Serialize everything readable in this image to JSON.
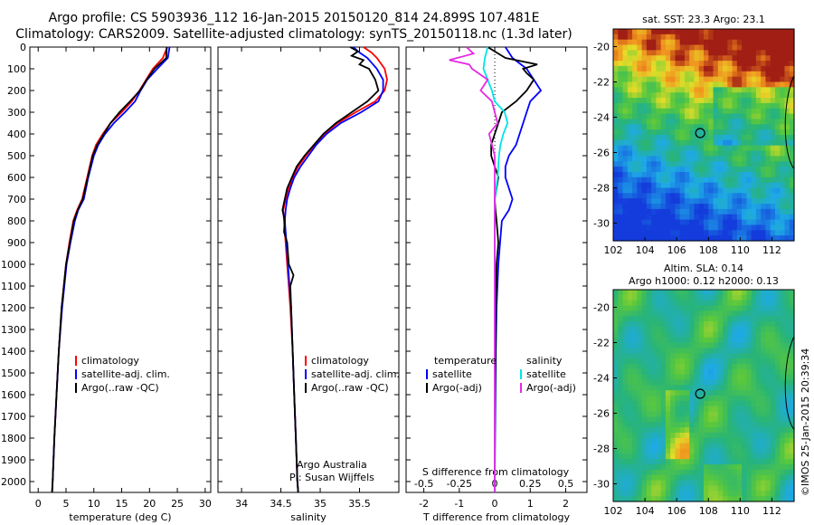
{
  "title": {
    "line1": "Argo profile: CS 5903936_112 16-Jan-2015 20150120_814 24.899S 107.481E",
    "line2": "Climatology: CARS2009. Satellite-adjusted climatology: synTS_20150118.nc (1.3d later)"
  },
  "stamp": "©IMOS 25-Jan-2015 20:39:34",
  "colors": {
    "climatology": "#ff0000",
    "satellite": "#0000ff",
    "argo": "#000000",
    "sal_satellite": "#00e5e5",
    "sal_argo": "#e528e5"
  },
  "depth_axis": {
    "range": [
      0,
      2050
    ],
    "ticks": [
      0,
      100,
      200,
      300,
      400,
      500,
      600,
      700,
      800,
      900,
      1000,
      1100,
      1200,
      1300,
      1400,
      1500,
      1600,
      1700,
      1800,
      1900,
      2000
    ]
  },
  "legends": {
    "temp": [
      "climatology",
      "satellite-adj. clim.",
      "Argo(..raw -QC)"
    ],
    "sal": [
      "climatology",
      "satellite-adj. clim.",
      "Argo(..raw -QC)"
    ],
    "diff_temp_header": "temperature",
    "diff_sal_header": "salinity",
    "diff_temp": [
      "satellite",
      "Argo(-adj)"
    ],
    "diff_sal": [
      "satellite",
      "Argo(-adj)"
    ]
  },
  "annotations": {
    "argo_line1": "Argo Australia",
    "argo_line2": "PI: Susan Wijffels",
    "s_diff_label": "S difference from climatology"
  },
  "maps": {
    "sst_title": "sat. SST: 23.3 Argo: 23.1",
    "sla_title_line1": "Altim. SLA: 0.14",
    "sla_title_line2": "Argo h1000: 0.12 h2000: 0.13",
    "lon_ticks": [
      102,
      104,
      106,
      108,
      110,
      112
    ],
    "lat_ticks": [
      -20,
      -22,
      -24,
      -26,
      -28,
      -30
    ],
    "argo_lon": 107.481,
    "argo_lat": -24.899,
    "lon_range": [
      102,
      113.4
    ],
    "lat_range": [
      -31,
      -19
    ]
  },
  "chart_data": [
    {
      "type": "line",
      "panel": "temperature",
      "xlabel": "temperature (deg C)",
      "ylabel": "",
      "xlim": [
        -1.5,
        31
      ],
      "ylim": [
        2050,
        0
      ],
      "x_ticks": [
        0,
        5,
        10,
        15,
        20,
        25,
        30
      ],
      "series": [
        {
          "name": "climatology",
          "depth": [
            0,
            50,
            100,
            150,
            200,
            250,
            300,
            350,
            400,
            450,
            500,
            600,
            700,
            750,
            800,
            900,
            1000,
            1200,
            1400,
            1600,
            1800,
            2000,
            2050
          ],
          "values": [
            23.2,
            22.4,
            20.6,
            19.4,
            18.2,
            16.8,
            15.0,
            13.0,
            11.6,
            10.4,
            9.7,
            8.8,
            7.9,
            7.0,
            6.3,
            5.6,
            5.0,
            4.2,
            3.7,
            3.3,
            2.9,
            2.6,
            2.5
          ]
        },
        {
          "name": "satellite-adj. clim.",
          "depth": [
            0,
            50,
            100,
            150,
            200,
            250,
            300,
            350,
            400,
            450,
            500,
            600,
            700,
            750,
            800,
            900,
            1000,
            1200,
            1400,
            1600,
            1800,
            2000,
            2050
          ],
          "values": [
            23.6,
            23.3,
            21.4,
            19.6,
            18.4,
            17.4,
            15.6,
            13.6,
            12.0,
            10.8,
            10.0,
            9.0,
            8.2,
            7.2,
            6.6,
            5.8,
            5.1,
            4.3,
            3.7,
            3.3,
            2.9,
            2.6,
            2.5
          ]
        },
        {
          "name": "Argo(..raw -QC)",
          "depth": [
            0,
            50,
            100,
            150,
            200,
            250,
            300,
            350,
            400,
            450,
            500,
            600,
            700,
            750,
            800,
            900,
            1000,
            1200,
            1400,
            1600,
            1800,
            2000,
            2050
          ],
          "values": [
            23.1,
            23.0,
            20.9,
            19.5,
            18.3,
            16.5,
            14.6,
            13.0,
            11.8,
            10.6,
            9.8,
            8.9,
            8.0,
            7.1,
            6.4,
            5.7,
            5.0,
            4.2,
            3.7,
            3.3,
            2.9,
            2.6,
            2.5
          ]
        }
      ]
    },
    {
      "type": "line",
      "panel": "salinity",
      "xlabel": "salinity",
      "ylabel": "",
      "xlim": [
        33.7,
        36.0
      ],
      "ylim": [
        2050,
        0
      ],
      "x_ticks": [
        34,
        34.5,
        35,
        35.5
      ],
      "series": [
        {
          "name": "climatology",
          "depth": [
            0,
            25,
            50,
            100,
            150,
            200,
            250,
            300,
            350,
            400,
            450,
            500,
            550,
            600,
            650,
            700,
            750,
            800,
            850,
            900,
            1000,
            1100,
            1200,
            1400,
            1600,
            1800,
            2000,
            2050
          ],
          "values": [
            35.55,
            35.65,
            35.72,
            35.82,
            35.85,
            35.82,
            35.7,
            35.45,
            35.22,
            35.05,
            34.93,
            34.82,
            34.72,
            34.65,
            34.6,
            34.56,
            34.53,
            34.54,
            34.55,
            34.56,
            34.58,
            34.6,
            34.62,
            34.65,
            34.67,
            34.69,
            34.71,
            34.72
          ]
        },
        {
          "name": "satellite-adj. clim.",
          "depth": [
            0,
            25,
            50,
            100,
            150,
            200,
            250,
            300,
            350,
            400,
            450,
            500,
            550,
            600,
            650,
            700,
            750,
            800,
            850,
            900,
            1000,
            1100,
            1200,
            1400,
            1600,
            1800,
            2000,
            2050
          ],
          "values": [
            35.42,
            35.5,
            35.6,
            35.72,
            35.8,
            35.8,
            35.74,
            35.52,
            35.26,
            35.08,
            34.95,
            34.85,
            34.75,
            34.67,
            34.62,
            34.58,
            34.56,
            34.55,
            34.56,
            34.57,
            34.59,
            34.61,
            34.63,
            34.65,
            34.67,
            34.69,
            34.71,
            34.72
          ]
        },
        {
          "name": "Argo(..raw -QC)",
          "depth": [
            0,
            20,
            40,
            60,
            80,
            100,
            150,
            200,
            250,
            300,
            350,
            400,
            450,
            500,
            550,
            600,
            650,
            700,
            750,
            800,
            850,
            900,
            1000,
            1050,
            1100,
            1200,
            1400,
            1600,
            1800,
            2000,
            2050
          ],
          "values": [
            35.38,
            35.48,
            35.4,
            35.55,
            35.5,
            35.62,
            35.7,
            35.74,
            35.6,
            35.4,
            35.2,
            35.04,
            34.92,
            34.8,
            34.7,
            34.64,
            34.58,
            34.55,
            34.52,
            34.55,
            34.54,
            34.58,
            34.6,
            34.66,
            34.62,
            34.63,
            34.65,
            34.67,
            34.69,
            34.71,
            34.72
          ]
        }
      ]
    },
    {
      "type": "line",
      "panel": "difference",
      "xlabel": "T difference from climatology",
      "x2label": "S difference from climatology",
      "ylabel": "",
      "xlim": [
        -2.5,
        2.6
      ],
      "ylim": [
        2050,
        0
      ],
      "x_ticks": [
        -2,
        -1,
        0,
        1,
        2
      ],
      "x2_ticks": [
        -0.5,
        -0.25,
        0,
        0.25,
        0.5
      ],
      "series": [
        {
          "name": "temperature satellite",
          "depth": [
            0,
            50,
            100,
            150,
            200,
            250,
            300,
            350,
            400,
            450,
            500,
            550,
            600,
            650,
            700,
            750,
            800,
            900,
            1000,
            1200,
            1400,
            1600,
            1800,
            2000,
            2050
          ],
          "values": [
            0.3,
            0.5,
            0.9,
            1.1,
            1.3,
            1.0,
            0.9,
            0.8,
            0.7,
            0.6,
            0.4,
            0.3,
            0.3,
            0.4,
            0.5,
            0.4,
            0.2,
            0.15,
            0.1,
            0.05,
            0.03,
            0.02,
            0.01,
            0.0,
            0.0
          ]
        },
        {
          "name": "temperature Argo(-adj)",
          "depth": [
            0,
            50,
            80,
            100,
            120,
            150,
            200,
            250,
            300,
            350,
            400,
            450,
            500,
            550,
            600,
            650,
            700,
            750,
            800,
            900,
            1000,
            1200,
            1400,
            1600,
            1800,
            2000,
            2050
          ],
          "values": [
            -0.2,
            0.3,
            1.2,
            0.8,
            0.9,
            1.1,
            0.9,
            0.6,
            0.2,
            0.1,
            0.0,
            -0.1,
            -0.1,
            0.0,
            0.1,
            0.05,
            0.0,
            0.02,
            0.05,
            0.1,
            0.05,
            0.03,
            0.02,
            0.01,
            0.0,
            0.0,
            0.0
          ]
        },
        {
          "name": "salinity satellite",
          "depth": [
            0,
            50,
            100,
            150,
            200,
            250,
            300,
            350,
            400,
            450,
            500,
            600,
            700,
            800,
            900,
            1000,
            1200,
            1400,
            1600,
            1800,
            2000,
            2050
          ],
          "values": [
            -0.05,
            -0.07,
            -0.08,
            -0.05,
            -0.02,
            0.0,
            0.07,
            0.09,
            0.06,
            0.04,
            0.03,
            0.02,
            0.0,
            0.0,
            0.0,
            0.0,
            0.0,
            0.0,
            0.0,
            0.0,
            0.0,
            0.0
          ]
        },
        {
          "name": "salinity Argo(-adj)",
          "depth": [
            0,
            30,
            60,
            80,
            100,
            150,
            200,
            250,
            300,
            350,
            400,
            450,
            500,
            600,
            700,
            800,
            900,
            1000,
            1200,
            1400,
            1600,
            1800,
            2000,
            2050
          ],
          "values": [
            -0.2,
            -0.15,
            -0.32,
            -0.18,
            -0.16,
            -0.05,
            -0.1,
            -0.02,
            0.0,
            0.02,
            -0.04,
            -0.02,
            0.0,
            0.0,
            0.0,
            0.0,
            0.0,
            0.0,
            0.0,
            0.0,
            0.0,
            0.0,
            0.0,
            0.0
          ]
        }
      ]
    }
  ]
}
